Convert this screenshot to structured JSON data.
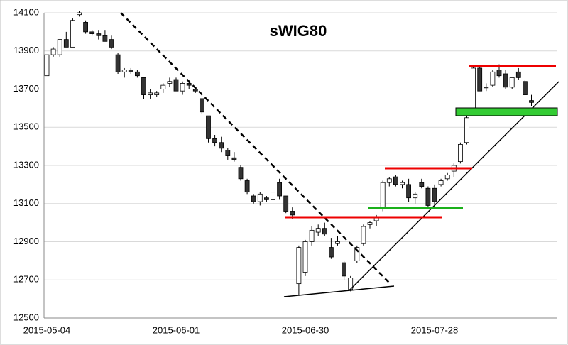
{
  "chart_data": {
    "type": "candlestick",
    "title": "sWIG80",
    "categories": [
      "2015-05-04",
      null,
      null,
      null,
      null,
      null,
      null,
      null,
      null,
      null,
      null,
      null,
      null,
      null,
      null,
      null,
      null,
      null,
      null,
      null,
      "2015-06-01",
      null,
      null,
      null,
      null,
      null,
      null,
      null,
      null,
      null,
      null,
      null,
      null,
      null,
      null,
      null,
      null,
      null,
      null,
      null,
      "2015-06-30",
      null,
      null,
      null,
      null,
      null,
      null,
      null,
      null,
      null,
      null,
      null,
      null,
      null,
      null,
      null,
      null,
      null,
      null,
      null,
      "2015-07-28",
      null,
      null,
      null,
      null,
      null,
      null,
      null,
      null,
      null,
      null,
      null,
      null,
      null,
      null,
      null
    ],
    "open": [
      13770,
      13880,
      13880,
      13960,
      13920,
      14090,
      14050,
      14000,
      13990,
      13980,
      13960,
      13880,
      13790,
      13800,
      13790,
      13760,
      13670,
      13670,
      13700,
      13730,
      13750,
      13690,
      13730,
      13700,
      13650,
      13560,
      13440,
      13420,
      13380,
      13340,
      13290,
      13220,
      13140,
      13110,
      13130,
      13120,
      13210,
      13140,
      13060,
      12680,
      12740,
      12900,
      12950,
      12970,
      12870,
      12890,
      12790,
      12650,
      12800,
      12890,
      12990,
      13010,
      13080,
      13210,
      13240,
      13200,
      13200,
      13130,
      13210,
      13180,
      13180,
      13200,
      13230,
      13270,
      13320,
      13420,
      13600,
      13810,
      13710,
      13720,
      13800,
      13780,
      13710,
      13790,
      13740,
      13640
    ],
    "high": [
      13880,
      13920,
      13960,
      14000,
      14070,
      14110,
      14060,
      14010,
      14010,
      14010,
      13980,
      13890,
      13810,
      13810,
      13800,
      13760,
      13700,
      13690,
      13730,
      13760,
      13760,
      13740,
      13740,
      13710,
      13650,
      13560,
      13460,
      13450,
      13390,
      13370,
      13300,
      13230,
      13150,
      13160,
      13140,
      13170,
      13230,
      13140,
      13080,
      12880,
      12910,
      12980,
      12990,
      13000,
      12920,
      12930,
      12800,
      12720,
      12880,
      12990,
      13010,
      13040,
      13220,
      13240,
      13250,
      13220,
      13230,
      13160,
      13230,
      13190,
      13200,
      13230,
      13260,
      13310,
      13420,
      13560,
      13820,
      13820,
      13730,
      13800,
      13830,
      13800,
      13760,
      13810,
      13750,
      13670
    ],
    "low": [
      13770,
      13870,
      13870,
      13920,
      13920,
      14080,
      13990,
      13980,
      13960,
      13950,
      13910,
      13780,
      13760,
      13780,
      13760,
      13650,
      13650,
      13660,
      13680,
      13710,
      13690,
      13670,
      13700,
      13680,
      13570,
      13420,
      13400,
      13370,
      13330,
      13320,
      13220,
      13150,
      13100,
      13090,
      13110,
      13100,
      13120,
      13050,
      13020,
      12620,
      12720,
      12880,
      12930,
      12930,
      12810,
      12880,
      12700,
      12640,
      12790,
      12880,
      12970,
      12980,
      13060,
      13190,
      13190,
      13180,
      13110,
      13100,
      13180,
      13080,
      13090,
      13190,
      13220,
      13240,
      13310,
      13410,
      13590,
      13690,
      13690,
      13710,
      13760,
      13700,
      13700,
      13750,
      13670,
      13610
    ],
    "close": [
      13880,
      13910,
      13960,
      13920,
      14060,
      14100,
      14000,
      13990,
      13980,
      13950,
      13920,
      13790,
      13800,
      13790,
      13770,
      13670,
      13680,
      13680,
      13720,
      13740,
      13690,
      13730,
      13720,
      13690,
      13580,
      13440,
      13420,
      13390,
      13350,
      13330,
      13230,
      13160,
      13110,
      13150,
      13120,
      13160,
      13140,
      13060,
      13040,
      12870,
      12900,
      12960,
      12970,
      12940,
      12820,
      12900,
      12720,
      12710,
      12870,
      12980,
      13000,
      13030,
      13210,
      13230,
      13200,
      13210,
      13130,
      13150,
      13190,
      13090,
      13110,
      13220,
      13250,
      13300,
      13410,
      13550,
      13810,
      13690,
      13710,
      13790,
      13770,
      13710,
      13760,
      13760,
      13670,
      13630
    ],
    "ylim": [
      12500,
      14100
    ],
    "yticks": [
      12500,
      12700,
      12900,
      13100,
      13300,
      13500,
      13700,
      13900,
      14100
    ],
    "grid": true,
    "up_color": "#ffffff",
    "down_color": "#333333"
  }
}
